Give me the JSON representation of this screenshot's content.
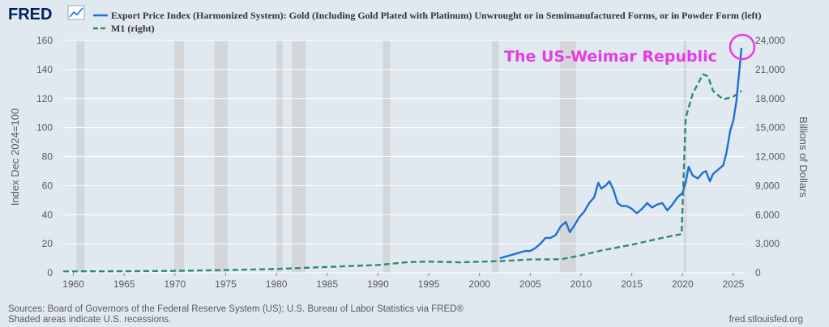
{
  "header": {
    "logo_text": "FRED",
    "logo_icon": "line-chart-icon"
  },
  "colors": {
    "series1": "#1f6fd8",
    "series2": "#2e8b6f",
    "recession": "#c8c8c8",
    "annotation": "#e63be6",
    "background": "#e1e9f0"
  },
  "chart_data": {
    "type": "line",
    "title": "",
    "x_range": [
      1959,
      2026.2
    ],
    "x_ticks": [
      1960,
      1965,
      1970,
      1975,
      1980,
      1985,
      1990,
      1995,
      2000,
      2005,
      2010,
      2015,
      2020,
      2025
    ],
    "x_tick_labels": [
      "1960",
      "1965",
      "1970",
      "1975",
      "1980",
      "1985",
      "1990",
      "1995",
      "2000",
      "2005",
      "2010",
      "2015",
      "2020",
      "2025"
    ],
    "y_left": {
      "label": "Index Dec 2024=100",
      "range": [
        0,
        160
      ],
      "ticks": [
        0,
        20,
        40,
        60,
        80,
        100,
        120,
        140,
        160
      ],
      "tick_labels": [
        "0",
        "20",
        "40",
        "60",
        "80",
        "100",
        "120",
        "140",
        "160"
      ]
    },
    "y_right": {
      "label": "Billions of Dollars",
      "range": [
        0,
        24000
      ],
      "ticks": [
        0,
        3000,
        6000,
        9000,
        12000,
        15000,
        18000,
        21000,
        24000
      ],
      "tick_labels": [
        "0",
        "3,000",
        "6,000",
        "9,000",
        "12,000",
        "15,000",
        "18,000",
        "21,000",
        "24,000"
      ]
    },
    "recessions": [
      [
        1960.3,
        1961.1
      ],
      [
        1969.9,
        1970.9
      ],
      [
        1973.9,
        1975.2
      ],
      [
        1980.0,
        1980.6
      ],
      [
        1981.5,
        1982.9
      ],
      [
        1990.5,
        1991.2
      ],
      [
        2001.2,
        2001.9
      ],
      [
        2007.9,
        2009.5
      ],
      [
        2020.1,
        2020.4
      ]
    ],
    "series": [
      {
        "name": "Export Price Index (Harmonized System): Gold (Including Gold Plated with Platinum) Unwrought or in Semimanufactured Forms, or in Powder Form (left)",
        "axis": "left",
        "style": "solid",
        "points": [
          [
            2002.0,
            10
          ],
          [
            2002.5,
            11
          ],
          [
            2003.0,
            12
          ],
          [
            2003.5,
            13
          ],
          [
            2004.0,
            14
          ],
          [
            2004.5,
            15
          ],
          [
            2005.0,
            15
          ],
          [
            2005.5,
            17
          ],
          [
            2006.0,
            20
          ],
          [
            2006.5,
            24
          ],
          [
            2007.0,
            24
          ],
          [
            2007.5,
            26
          ],
          [
            2008.0,
            32
          ],
          [
            2008.5,
            35
          ],
          [
            2008.9,
            28
          ],
          [
            2009.3,
            32
          ],
          [
            2009.8,
            38
          ],
          [
            2010.3,
            42
          ],
          [
            2010.8,
            48
          ],
          [
            2011.3,
            52
          ],
          [
            2011.7,
            62
          ],
          [
            2012.0,
            58
          ],
          [
            2012.4,
            60
          ],
          [
            2012.8,
            63
          ],
          [
            2013.2,
            57
          ],
          [
            2013.6,
            48
          ],
          [
            2014.0,
            46
          ],
          [
            2014.5,
            46
          ],
          [
            2015.0,
            44
          ],
          [
            2015.5,
            41
          ],
          [
            2016.0,
            44
          ],
          [
            2016.5,
            48
          ],
          [
            2017.0,
            45
          ],
          [
            2017.5,
            47
          ],
          [
            2018.0,
            48
          ],
          [
            2018.5,
            43
          ],
          [
            2019.0,
            47
          ],
          [
            2019.5,
            52
          ],
          [
            2020.0,
            55
          ],
          [
            2020.3,
            62
          ],
          [
            2020.6,
            73
          ],
          [
            2021.0,
            67
          ],
          [
            2021.5,
            65
          ],
          [
            2022.0,
            69
          ],
          [
            2022.3,
            70
          ],
          [
            2022.7,
            63
          ],
          [
            2023.0,
            68
          ],
          [
            2023.5,
            71
          ],
          [
            2024.0,
            74
          ],
          [
            2024.3,
            82
          ],
          [
            2024.7,
            98
          ],
          [
            2025.0,
            105
          ],
          [
            2025.3,
            118
          ],
          [
            2025.6,
            140
          ],
          [
            2025.8,
            155
          ]
        ]
      },
      {
        "name": "M1 (right)",
        "axis": "right",
        "style": "dashed",
        "points": [
          [
            1959.0,
            140
          ],
          [
            1965.0,
            160
          ],
          [
            1970.0,
            200
          ],
          [
            1975.0,
            280
          ],
          [
            1980.0,
            390
          ],
          [
            1985.0,
            600
          ],
          [
            1990.0,
            800
          ],
          [
            1993.0,
            1100
          ],
          [
            1995.0,
            1150
          ],
          [
            1998.0,
            1080
          ],
          [
            2002.0,
            1200
          ],
          [
            2005.0,
            1370
          ],
          [
            2008.0,
            1400
          ],
          [
            2010.0,
            1800
          ],
          [
            2012.0,
            2300
          ],
          [
            2015.0,
            2900
          ],
          [
            2018.0,
            3600
          ],
          [
            2019.9,
            4000
          ],
          [
            2020.3,
            16000
          ],
          [
            2021.0,
            18500
          ],
          [
            2022.0,
            20500
          ],
          [
            2022.5,
            20300
          ],
          [
            2023.0,
            18800
          ],
          [
            2024.0,
            17900
          ],
          [
            2025.0,
            18200
          ],
          [
            2025.8,
            18800
          ]
        ]
      }
    ],
    "annotation": {
      "text": "The US-Weimar Republic",
      "x": 2025.8,
      "y_left": 155
    }
  },
  "footer": {
    "sources": "Sources: Board of Governors of the Federal Reserve System (US); U.S. Bureau of Labor Statistics via FRED®",
    "shaded": "Shaded areas indicate U.S. recessions.",
    "site": "fred.stlouisfed.org"
  }
}
